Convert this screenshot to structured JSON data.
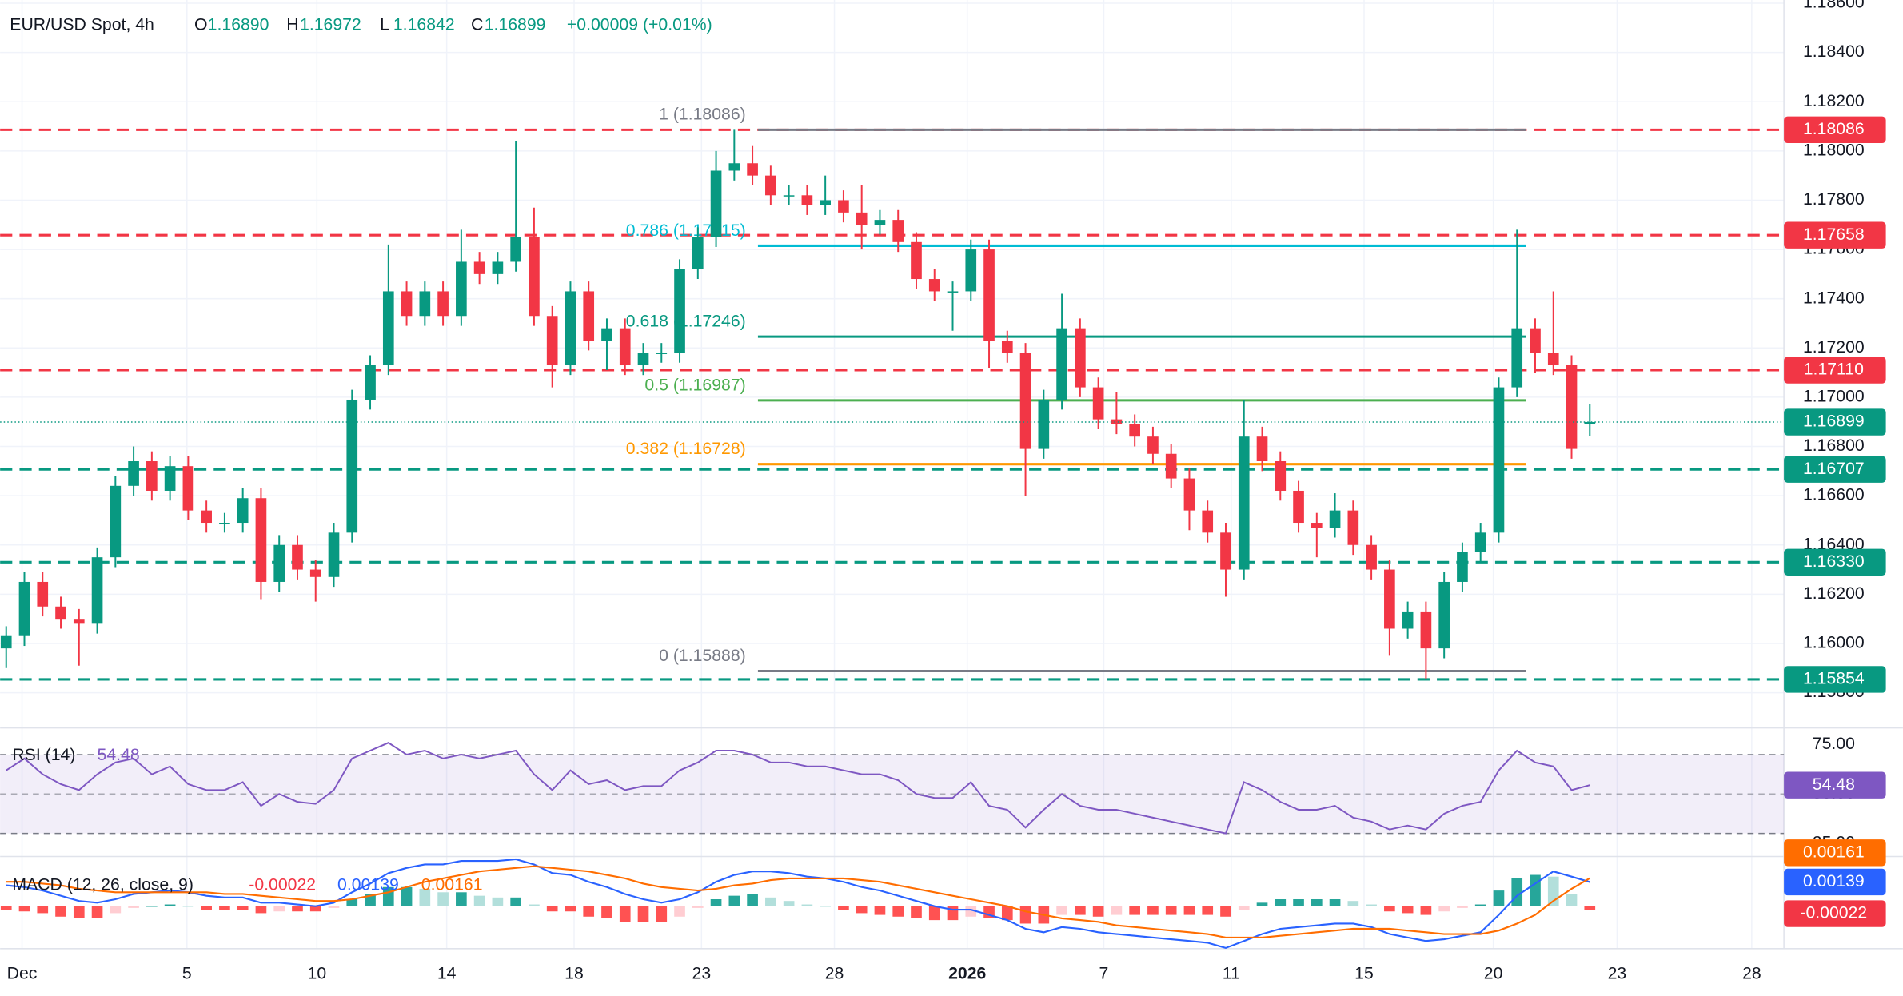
{
  "chart_data": [
    {
      "type": "candlestick",
      "title": "EUR/USD Spot, 4h",
      "ohlc_labels": [
        {
          "name": "O",
          "value": "1.16890"
        },
        {
          "name": "H",
          "value": "1.16972"
        },
        {
          "name": "L",
          "value": "1.16842"
        },
        {
          "name": "C",
          "value": "1.16899"
        }
      ],
      "change": "+0.00009 (+0.01%)",
      "open": [
        1.1598,
        1.1603,
        1.1625,
        1.1615,
        1.161,
        1.1608,
        1.1635,
        1.1664,
        1.1674,
        1.1662,
        1.1672,
        1.1654,
        1.1649,
        1.1649,
        1.1659,
        1.1625,
        1.164,
        1.163,
        1.1627,
        1.1645,
        1.1699,
        1.1713,
        1.1743,
        1.1733,
        1.1743,
        1.1733,
        1.1755,
        1.175,
        1.1755,
        1.1765,
        1.1733,
        1.1713,
        1.1743,
        1.1723,
        1.1728,
        1.1713,
        1.1718,
        1.1718,
        1.1752,
        1.1765,
        1.1792,
        1.1795,
        1.179,
        1.1782,
        1.1782,
        1.1778,
        1.178,
        1.1775,
        1.177,
        1.1772,
        1.1763,
        1.1748,
        1.1743,
        1.1743,
        1.176,
        1.1723,
        1.1718,
        1.1679,
        1.1699,
        1.1728,
        1.1704,
        1.1691,
        1.1689,
        1.1684,
        1.1677,
        1.1667,
        1.1654,
        1.1645,
        1.163,
        1.1684,
        1.1674,
        1.1662,
        1.1649,
        1.1647,
        1.1654,
        1.164,
        1.163,
        1.1606,
        1.1613,
        1.1598,
        1.1625,
        1.1637,
        1.1645,
        1.1704,
        1.1728,
        1.1718,
        1.1713,
        1.1689
      ],
      "high": [
        1.1607,
        1.1629,
        1.1629,
        1.1619,
        1.1614,
        1.1639,
        1.1668,
        1.168,
        1.1678,
        1.1676,
        1.1676,
        1.1658,
        1.1653,
        1.1663,
        1.1663,
        1.1644,
        1.1644,
        1.1634,
        1.1649,
        1.1703,
        1.1717,
        1.1762,
        1.1747,
        1.1747,
        1.1747,
        1.1768,
        1.1759,
        1.1759,
        1.1804,
        1.1777,
        1.1737,
        1.1747,
        1.1747,
        1.1732,
        1.1732,
        1.1722,
        1.1722,
        1.1756,
        1.1769,
        1.18,
        1.18086,
        1.1802,
        1.1794,
        1.1786,
        1.1786,
        1.179,
        1.1784,
        1.1786,
        1.1776,
        1.1776,
        1.1767,
        1.1752,
        1.1747,
        1.1764,
        1.1764,
        1.1727,
        1.1722,
        1.1703,
        1.1742,
        1.1732,
        1.1708,
        1.1702,
        1.1693,
        1.1688,
        1.1681,
        1.1671,
        1.1658,
        1.1649,
        1.1699,
        1.1688,
        1.1678,
        1.1666,
        1.1653,
        1.1661,
        1.1658,
        1.1644,
        1.1634,
        1.1617,
        1.1617,
        1.1629,
        1.1641,
        1.1649,
        1.1708,
        1.1768,
        1.1732,
        1.1743,
        1.1717,
        1.16972
      ],
      "low": [
        1.159,
        1.1599,
        1.1611,
        1.1606,
        1.1591,
        1.1604,
        1.1631,
        1.166,
        1.1658,
        1.1658,
        1.165,
        1.1645,
        1.1645,
        1.1645,
        1.1618,
        1.1621,
        1.1626,
        1.1617,
        1.1623,
        1.1641,
        1.1695,
        1.1709,
        1.1729,
        1.1729,
        1.1729,
        1.1729,
        1.1746,
        1.1746,
        1.1751,
        1.1729,
        1.1704,
        1.1709,
        1.1719,
        1.1711,
        1.1709,
        1.1709,
        1.1714,
        1.1714,
        1.1748,
        1.1761,
        1.1788,
        1.1786,
        1.1778,
        1.1778,
        1.1774,
        1.1774,
        1.1771,
        1.176,
        1.1766,
        1.1759,
        1.1744,
        1.1739,
        1.1727,
        1.1739,
        1.1712,
        1.1714,
        1.166,
        1.1675,
        1.1695,
        1.17,
        1.1687,
        1.1685,
        1.168,
        1.1673,
        1.1663,
        1.1646,
        1.1641,
        1.1619,
        1.1626,
        1.167,
        1.1658,
        1.1645,
        1.1635,
        1.1643,
        1.1636,
        1.1626,
        1.1595,
        1.1602,
        1.15854,
        1.1594,
        1.1621,
        1.1633,
        1.1641,
        1.17,
        1.171,
        1.1709,
        1.1675,
        1.16842
      ],
      "close": [
        1.1603,
        1.1625,
        1.1615,
        1.161,
        1.1608,
        1.1635,
        1.1664,
        1.1674,
        1.1662,
        1.1672,
        1.1654,
        1.1649,
        1.1649,
        1.1659,
        1.1625,
        1.164,
        1.163,
        1.1627,
        1.1645,
        1.1699,
        1.1713,
        1.1743,
        1.1733,
        1.1743,
        1.1733,
        1.1755,
        1.175,
        1.1755,
        1.1765,
        1.1733,
        1.1713,
        1.1743,
        1.1723,
        1.1728,
        1.1713,
        1.1718,
        1.1718,
        1.1752,
        1.1765,
        1.1792,
        1.1795,
        1.179,
        1.1782,
        1.1782,
        1.1778,
        1.178,
        1.1775,
        1.177,
        1.1772,
        1.1763,
        1.1748,
        1.1743,
        1.1743,
        1.176,
        1.1723,
        1.1718,
        1.1679,
        1.1699,
        1.1728,
        1.1704,
        1.1691,
        1.1689,
        1.1684,
        1.1677,
        1.1667,
        1.1654,
        1.1645,
        1.163,
        1.1684,
        1.1674,
        1.1662,
        1.1649,
        1.1647,
        1.1654,
        1.164,
        1.163,
        1.1606,
        1.1613,
        1.1598,
        1.1625,
        1.1637,
        1.1645,
        1.1704,
        1.1728,
        1.1718,
        1.1713,
        1.1679,
        1.16899
      ],
      "up_color": "#089981",
      "down_color": "#f23645",
      "xlim": [
        -0.333,
        97.667
      ],
      "xticks": [
        {
          "value": 0.87,
          "label": "Dec"
        },
        {
          "value": 9.93,
          "label": "5"
        },
        {
          "value": 17.07,
          "label": "10"
        },
        {
          "value": 24.2,
          "label": "14"
        },
        {
          "value": 31.2,
          "label": "18"
        },
        {
          "value": 38.2,
          "label": "23"
        },
        {
          "value": 45.5,
          "label": "28"
        },
        {
          "value": 52.8,
          "label": "2026"
        },
        {
          "value": 60.3,
          "label": "7"
        },
        {
          "value": 67.3,
          "label": "11"
        },
        {
          "value": 74.6,
          "label": "15"
        },
        {
          "value": 81.7,
          "label": "20"
        },
        {
          "value": 88.5,
          "label": "23"
        },
        {
          "value": 95.9,
          "label": "28"
        }
      ],
      "ylim": [
        1.15667,
        1.18613
      ],
      "yticks": [
        {
          "value": 1.158,
          "label": "1.15800"
        },
        {
          "value": 1.16,
          "label": "1.16000"
        },
        {
          "value": 1.162,
          "label": "1.16200"
        },
        {
          "value": 1.164,
          "label": "1.16400"
        },
        {
          "value": 1.166,
          "label": "1.16600"
        },
        {
          "value": 1.168,
          "label": "1.16800"
        },
        {
          "value": 1.17,
          "label": "1.17000"
        },
        {
          "value": 1.172,
          "label": "1.17200"
        },
        {
          "value": 1.174,
          "label": "1.17400"
        },
        {
          "value": 1.176,
          "label": "1.17600"
        },
        {
          "value": 1.178,
          "label": "1.17800"
        },
        {
          "value": 1.18,
          "label": "1.18000"
        },
        {
          "value": 1.182,
          "label": "1.18200"
        },
        {
          "value": 1.184,
          "label": "1.18400"
        },
        {
          "value": 1.186,
          "label": "1.18600"
        }
      ],
      "grid": true,
      "levels": [
        {
          "value": 1.18086,
          "label": "1.18086",
          "color": "#f23645"
        },
        {
          "value": 1.17658,
          "label": "1.17658",
          "color": "#f23645"
        },
        {
          "value": 1.1711,
          "label": "1.17110",
          "color": "#f23645"
        },
        {
          "value": 1.16707,
          "label": "1.16707",
          "color": "#089981"
        },
        {
          "value": 1.1633,
          "label": "1.16330",
          "color": "#089981"
        },
        {
          "value": 1.15854,
          "label": "1.15854",
          "color": "#089981"
        }
      ],
      "last_price": {
        "value": 1.16899,
        "label": "1.16899",
        "color": "#089981"
      },
      "fib": {
        "start": 41.3,
        "end": 83.5,
        "lines": [
          {
            "value": 1.18086,
            "label": "1 (1.18086)",
            "color": "#787b86"
          },
          {
            "value": 1.17615,
            "label": "0.786 (1.17615)",
            "color": "#00bcd4"
          },
          {
            "value": 1.17246,
            "label": "0.618 (1.17246)",
            "color": "#089981"
          },
          {
            "value": 1.16987,
            "label": "0.5 (1.16987)",
            "color": "#4caf50"
          },
          {
            "value": 1.16728,
            "label": "0.382 (1.16728)",
            "color": "#ff9800"
          },
          {
            "value": 1.15888,
            "label": "0 (1.15888)",
            "color": "#787b86"
          }
        ]
      }
    },
    {
      "type": "rsi",
      "name": "RSI (14)",
      "value_label": "54.48",
      "color": "#7e57c2",
      "values": [
        62,
        68,
        60,
        55,
        52,
        60,
        66,
        68,
        60,
        64,
        55,
        52,
        52,
        56,
        44,
        50,
        46,
        45,
        52,
        68,
        72,
        76,
        70,
        72,
        68,
        70,
        68,
        70,
        72,
        60,
        52,
        62,
        55,
        57,
        52,
        54,
        54,
        62,
        66,
        72,
        72,
        70,
        66,
        66,
        64,
        64,
        62,
        60,
        60,
        57,
        50,
        48,
        48,
        56,
        44,
        42,
        33,
        42,
        50,
        44,
        42,
        42,
        40,
        38,
        36,
        34,
        32,
        30,
        56,
        52,
        46,
        42,
        42,
        44,
        38,
        36,
        32,
        34,
        32,
        40,
        44,
        46,
        62,
        72,
        66,
        64,
        52,
        54.48
      ],
      "ylim": [
        18.9,
        82.3
      ],
      "yticks": [
        {
          "value": 25,
          "label": "25.00"
        },
        {
          "value": 50,
          "label": "50.00"
        },
        {
          "value": 75,
          "label": "75.00"
        }
      ],
      "band": [
        30,
        70
      ],
      "midline": 50
    },
    {
      "type": "macd",
      "name": "MACD (12, 26, close, 9)",
      "ylim": [
        -0.00244,
        0.00272
      ],
      "histogram": {
        "label": "-0.00022",
        "color": "#f23645",
        "values": [
          -0.0002,
          -0.0003,
          -0.0004,
          -0.0006,
          -0.0007,
          -0.0007,
          -0.0004,
          -0.0001,
          0,
          0.0001,
          0,
          -0.0002,
          -0.0002,
          -0.0002,
          -0.0004,
          -0.0003,
          -0.0003,
          -0.0003,
          -0.0001,
          0.0004,
          0.0007,
          0.0011,
          0.0011,
          0.001,
          0.0008,
          0.0008,
          0.0006,
          0.0005,
          0.0005,
          0.0001,
          -0.0003,
          -0.0003,
          -0.0006,
          -0.0007,
          -0.0009,
          -0.0009,
          -0.0009,
          -0.0006,
          -0.0001,
          0.0004,
          0.0006,
          0.0007,
          0.0005,
          0.0003,
          0.0001,
          0,
          -0.0002,
          -0.0004,
          -0.0005,
          -0.0006,
          -0.0007,
          -0.0008,
          -0.0008,
          -0.0006,
          -0.0007,
          -0.0008,
          -0.001,
          -0.001,
          -0.0005,
          -0.0005,
          -0.0006,
          -0.0005,
          -0.0005,
          -0.0005,
          -0.0005,
          -0.0005,
          -0.0005,
          -0.0006,
          -0.0002,
          0.0002,
          0.0004,
          0.0004,
          0.0004,
          0.0004,
          0.0003,
          0.0001,
          -0.0003,
          -0.0004,
          -0.0005,
          -0.0003,
          -0.0001,
          0.0001,
          0.0009,
          0.0016,
          0.0018,
          0.0017,
          0.0007,
          -0.00022
        ]
      },
      "macd": {
        "label": "0.00139",
        "color": "#2962ff",
        "values": [
          0.0012,
          0.0011,
          0.0009,
          0.0006,
          0.0003,
          0.0002,
          0.0004,
          0.0007,
          0.0008,
          0.0009,
          0.0008,
          0.0006,
          0.0005,
          0.0005,
          0.0002,
          0.0002,
          0.0001,
          0.0,
          0.0002,
          0.0008,
          0.0013,
          0.0019,
          0.0022,
          0.0024,
          0.0024,
          0.0026,
          0.0026,
          0.0026,
          0.0027,
          0.0024,
          0.0019,
          0.0018,
          0.0014,
          0.0011,
          0.0007,
          0.0004,
          0.0002,
          0.0004,
          0.0008,
          0.0014,
          0.0018,
          0.002,
          0.002,
          0.0019,
          0.0017,
          0.0016,
          0.0014,
          0.0011,
          0.0009,
          0.0006,
          0.0003,
          0.0,
          -0.0002,
          -0.0002,
          -0.0005,
          -0.0008,
          -0.0013,
          -0.0015,
          -0.0012,
          -0.0013,
          -0.0015,
          -0.0016,
          -0.0017,
          -0.0018,
          -0.0019,
          -0.002,
          -0.0021,
          -0.0024,
          -0.002,
          -0.0016,
          -0.0013,
          -0.0012,
          -0.0011,
          -0.001,
          -0.001,
          -0.0012,
          -0.0016,
          -0.0018,
          -0.002,
          -0.0019,
          -0.0017,
          -0.0015,
          -0.0005,
          0.0006,
          0.0013,
          0.002,
          0.0017,
          0.00139
        ]
      },
      "signal": {
        "label": "0.00161",
        "color": "#ff6d00",
        "values": [
          0.0014,
          0.0014,
          0.0013,
          0.0012,
          0.001,
          0.0009,
          0.0008,
          0.0008,
          0.0008,
          0.0008,
          0.0008,
          0.0008,
          0.0007,
          0.0007,
          0.0006,
          0.0005,
          0.0004,
          0.0003,
          0.0003,
          0.0004,
          0.0006,
          0.0008,
          0.0011,
          0.0014,
          0.0016,
          0.0018,
          0.002,
          0.0021,
          0.0022,
          0.0023,
          0.0022,
          0.0021,
          0.002,
          0.0018,
          0.0016,
          0.0013,
          0.0011,
          0.001,
          0.0009,
          0.001,
          0.0012,
          0.0013,
          0.0015,
          0.0016,
          0.0016,
          0.0016,
          0.0016,
          0.0015,
          0.0014,
          0.0012,
          0.001,
          0.0008,
          0.0006,
          0.0004,
          0.0002,
          0.0,
          -0.0003,
          -0.0005,
          -0.0007,
          -0.0008,
          -0.0009,
          -0.0011,
          -0.0012,
          -0.0013,
          -0.0014,
          -0.0015,
          -0.0016,
          -0.0018,
          -0.0018,
          -0.0018,
          -0.0017,
          -0.0016,
          -0.0015,
          -0.0014,
          -0.0013,
          -0.0013,
          -0.0013,
          -0.0014,
          -0.0015,
          -0.0016,
          -0.0016,
          -0.0016,
          -0.0014,
          -0.001,
          -0.0005,
          0.0003,
          0.001,
          0.00161
        ]
      }
    }
  ]
}
